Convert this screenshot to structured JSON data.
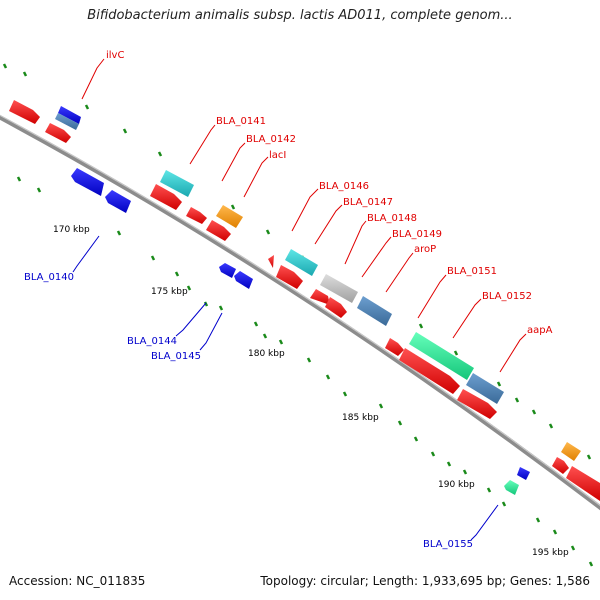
{
  "title": "Bifidobacterium animalis subsp. lactis AD011, complete genom...",
  "footer": {
    "accession": "Accession: NC_011835",
    "topology": "Topology: circular; Length: 1,933,695 bp; Genes: 1,586"
  },
  "ticks": [
    "170 kbp",
    "175 kbp",
    "180 kbp",
    "185 kbp",
    "190 kbp",
    "195 kbp"
  ],
  "gene_labels": {
    "ilvC": "ilvC",
    "bla0141": "BLA_0141",
    "bla0142": "BLA_0142",
    "lacI": "lacI",
    "bla0146": "BLA_0146",
    "bla0147": "BLA_0147",
    "bla0148": "BLA_0148",
    "bla0149": "BLA_0149",
    "aroP": "aroP",
    "bla0151": "BLA_0151",
    "bla0152": "BLA_0152",
    "aapA": "aapA",
    "bla0140": "BLA_0140",
    "bla0144": "BLA_0144",
    "bla0145": "BLA_0145",
    "bla0155": "BLA_0155"
  },
  "colors": {
    "cds": "#ff0000",
    "rna": "#0000ff",
    "category_cyan": "#22cccc",
    "category_orange": "#ff9900",
    "category_gray": "#bbbbbb",
    "category_steel": "#4682b4",
    "category_green": "#22ee99",
    "backbone": "#888888",
    "dots": "#1a8a1a"
  }
}
